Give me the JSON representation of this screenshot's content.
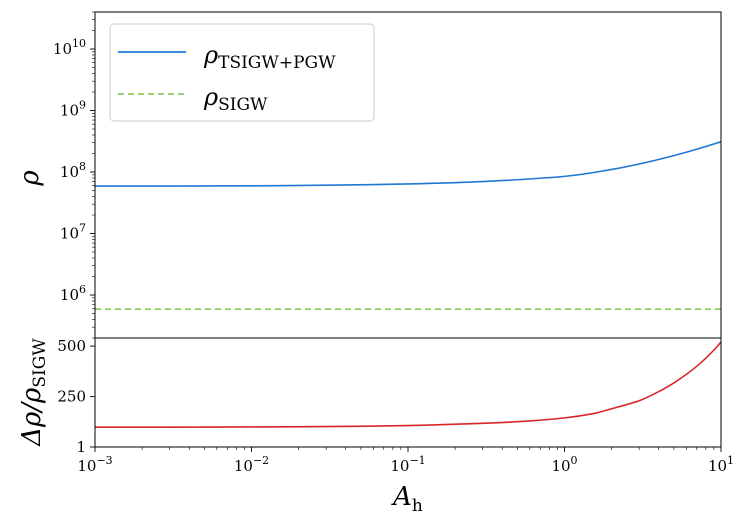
{
  "chart_data": [
    {
      "type": "line",
      "panel": "top",
      "xscale": "log",
      "yscale": "log",
      "xlim": [
        0.001,
        10
      ],
      "ylim": [
        200000,
        40000000000
      ],
      "ylabel": "ρ",
      "yticks": [
        {
          "base": "10",
          "exp": "6",
          "value": 1000000
        },
        {
          "base": "10",
          "exp": "7",
          "value": 10000000
        },
        {
          "base": "10",
          "exp": "8",
          "value": 100000000
        },
        {
          "base": "10",
          "exp": "9",
          "value": 1000000000
        },
        {
          "base": "10",
          "exp": "10",
          "value": 10000000000
        }
      ],
      "legend": {
        "location": "top-left",
        "entries": [
          {
            "symbol": "ρ",
            "subscript": "TSIGW+PGW",
            "color": "#1f77d4",
            "style": "solid"
          },
          {
            "symbol": "ρ",
            "subscript": "SIGW",
            "color": "#7cc242",
            "style": "dashed"
          }
        ]
      },
      "series": [
        {
          "name": "ρ_TSIGW+PGW",
          "color": "#1f77d4",
          "style": "solid",
          "x": [
            0.001,
            0.003,
            0.01,
            0.03,
            0.1,
            0.3,
            1,
            2,
            3,
            5,
            7,
            10
          ],
          "y": [
            59000000,
            59200000,
            59700000,
            61000000,
            64000000,
            70000000,
            85000000,
            110000000,
            135000000,
            185000000,
            235000000,
            310000000
          ]
        },
        {
          "name": "ρ_SIGW",
          "color": "#7cc242",
          "style": "dashed",
          "x": [
            0.001,
            10
          ],
          "y": [
            590000,
            590000
          ]
        }
      ]
    },
    {
      "type": "line",
      "panel": "bottom",
      "xscale": "log",
      "yscale": "linear",
      "xlim": [
        0.001,
        10
      ],
      "ylim": [
        1,
        540
      ],
      "xlabel": "A",
      "xlabel_sub": "h",
      "ylabel": "Δρ/ρ",
      "ylabel_sub": "SIGW",
      "yticks": [
        "1",
        "250",
        "500"
      ],
      "xticks": [
        {
          "base": "10",
          "exp": "−3",
          "value": 0.001
        },
        {
          "base": "10",
          "exp": "−2",
          "value": 0.01
        },
        {
          "base": "10",
          "exp": "−1",
          "value": 0.1
        },
        {
          "base": "10",
          "exp": "0",
          "value": 1
        },
        {
          "base": "10",
          "exp": "1",
          "value": 10
        }
      ],
      "series": [
        {
          "name": "Δρ/ρ_SIGW",
          "color": "#d62728",
          "x": [
            0.001,
            0.003,
            0.01,
            0.03,
            0.1,
            0.3,
            0.6,
            1,
            1.5,
            2,
            3,
            4,
            5,
            6,
            7,
            8,
            9,
            10
          ],
          "y": [
            99,
            99,
            100,
            102,
            107,
            118,
            130,
            145,
            165,
            190,
            230,
            275,
            318,
            360,
            400,
            440,
            480,
            520
          ]
        }
      ]
    }
  ]
}
